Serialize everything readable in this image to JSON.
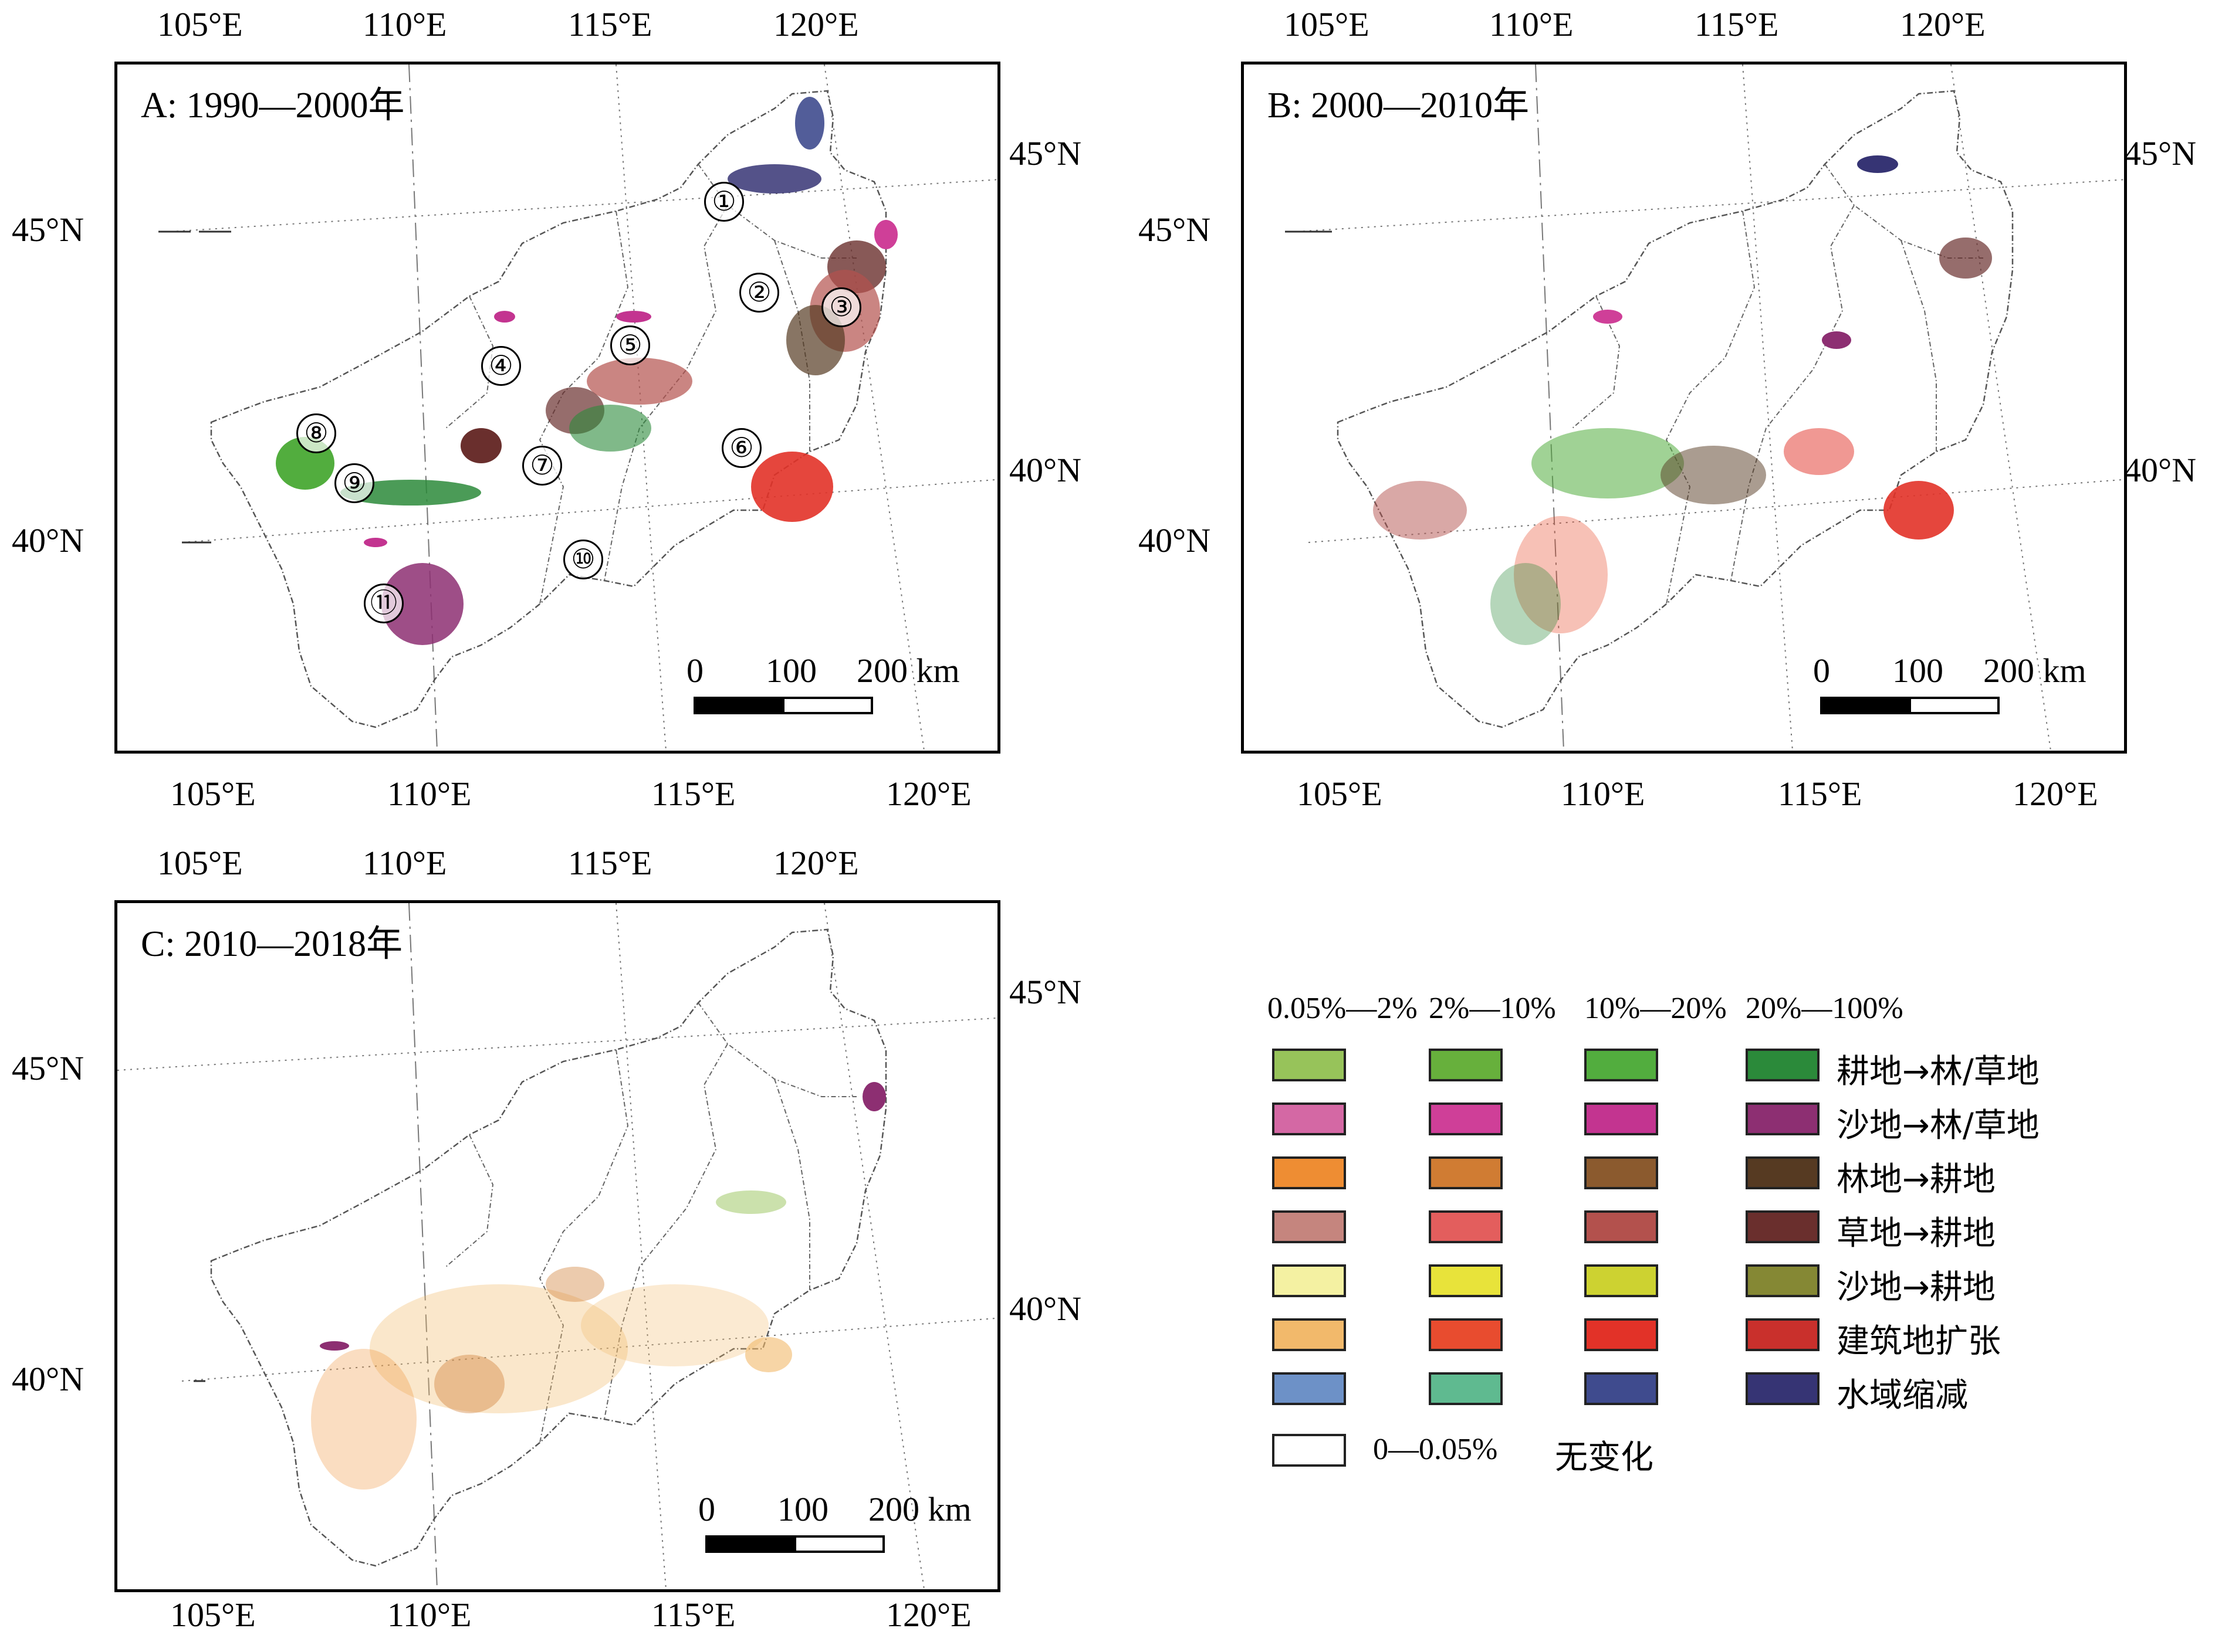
{
  "panels": [
    {
      "title": "A: 1990—2000年",
      "top_ticks": [
        "105°E",
        "110°E",
        "115°E",
        "120°E"
      ],
      "bottom_ticks": [
        "105°E",
        "110°E",
        "115°E",
        "120°E"
      ],
      "left_ticks": [
        "45°N",
        "40°N"
      ],
      "right_ticks": [
        "45°N",
        "40°N"
      ],
      "region_labels": [
        "①",
        "②",
        "③",
        "④",
        "⑤",
        "⑥",
        "⑦",
        "⑧",
        "⑨",
        "⑩",
        "⑪"
      ],
      "scalebar": {
        "n0": "0",
        "n1": "100",
        "n2": "200 km"
      }
    },
    {
      "title": "B: 2000—2010年",
      "top_ticks": [
        "105°E",
        "110°E",
        "115°E",
        "120°E"
      ],
      "bottom_ticks": [
        "105°E",
        "110°E",
        "115°E",
        "120°E"
      ],
      "left_ticks": [
        "45°N",
        "40°N"
      ],
      "right_ticks": [
        "45°N",
        "40°N"
      ],
      "region_labels": [],
      "scalebar": {
        "n0": "0",
        "n1": "100",
        "n2": "200 km"
      }
    },
    {
      "title": "C: 2010—2018年",
      "top_ticks": [
        "105°E",
        "110°E",
        "115°E",
        "120°E"
      ],
      "bottom_ticks": [
        "105°E",
        "110°E",
        "115°E",
        "120°E"
      ],
      "left_ticks": [
        "45°N",
        "40°N"
      ],
      "right_ticks": [
        "45°N",
        "40°N"
      ],
      "region_labels": [],
      "scalebar": {
        "n0": "0",
        "n1": "100",
        "n2": "200 km"
      }
    }
  ],
  "legend": {
    "column_headers": [
      "0.05%—2%",
      "2%—10%",
      "10%—20%",
      "20%—100%"
    ],
    "rows": [
      {
        "label": "耕地→林/草地",
        "colors": [
          "#97c35a",
          "#67b03c",
          "#52ad3e",
          "#2b8a3a"
        ]
      },
      {
        "label": "沙地→林/草地",
        "colors": [
          "#d468a4",
          "#cf3f98",
          "#c33490",
          "#8d2f72"
        ]
      },
      {
        "label": "林地→耕地",
        "colors": [
          "#ee8d33",
          "#d07c33",
          "#8b5a2e",
          "#563a22"
        ]
      },
      {
        "label": "草地→耕地",
        "colors": [
          "#c5857e",
          "#e35e5d",
          "#b3514d",
          "#6a2f2d"
        ]
      },
      {
        "label": "沙地→耕地",
        "colors": [
          "#f4f1a2",
          "#e8e33a",
          "#cdd231",
          "#858834"
        ]
      },
      {
        "label": "建筑地扩张",
        "colors": [
          "#f2b96b",
          "#e84c2f",
          "#e23228",
          "#c9302c"
        ]
      },
      {
        "label": "水域缩减",
        "colors": [
          "#6d91c7",
          "#5fba90",
          "#3f4b8e",
          "#363474"
        ]
      }
    ],
    "no_change": {
      "range": "0—0.05%",
      "label": "无变化"
    }
  }
}
